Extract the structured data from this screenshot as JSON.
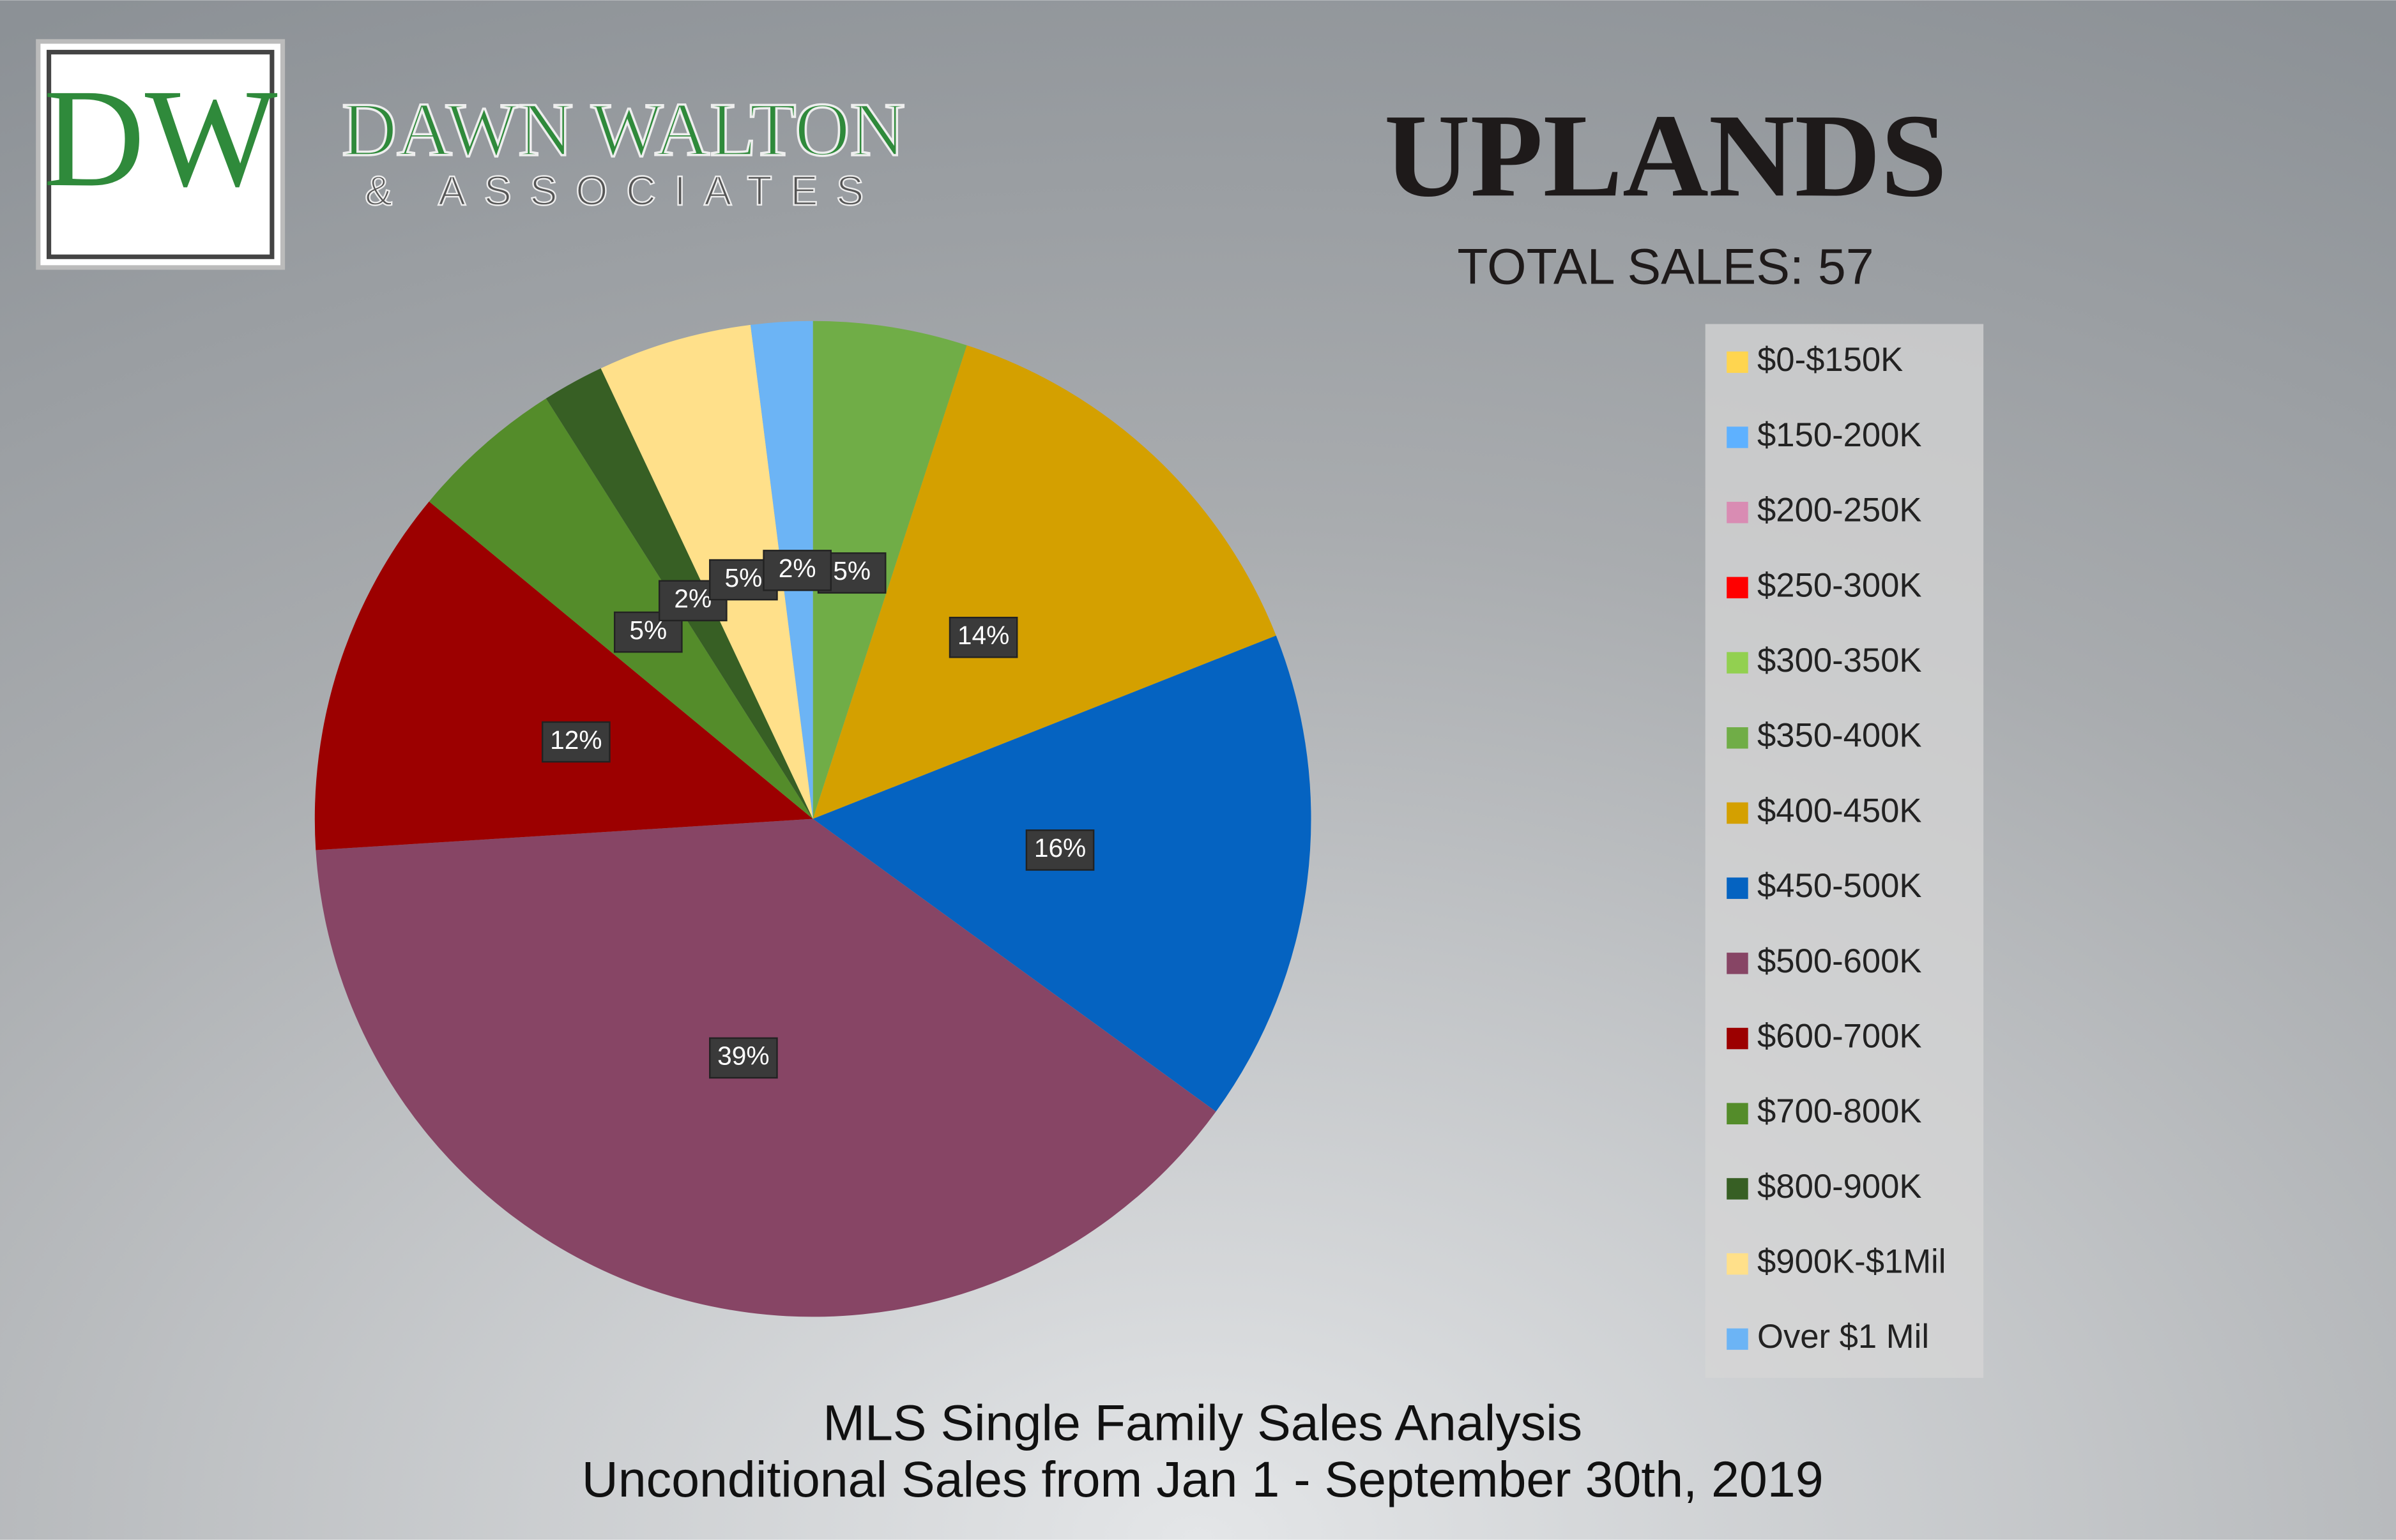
{
  "logo": {
    "initials": "DW",
    "name": "DAWN WALTON",
    "sub": "& ASSOCIATES"
  },
  "chart_data": {
    "type": "pie",
    "title": "UPLANDS",
    "subtitle": "TOTAL SALES: 57",
    "footer": [
      "MLS Single Family Sales Analysis",
      "Unconditional Sales from Jan 1 - September 30th, 2019"
    ],
    "categories": [
      "$0-$150K",
      "$150-200K",
      "$200-250K",
      "$250-300K",
      "$300-350K",
      "$350-400K",
      "$400-450K",
      "$450-500K",
      "$500-600K",
      "$600-700K",
      "$700-800K",
      "$800-900K",
      "$900K-$1Mil",
      "Over $1 Mil"
    ],
    "values": [
      0,
      0,
      0,
      0,
      0,
      5,
      14,
      16,
      39,
      12,
      5,
      2,
      5,
      2
    ],
    "value_labels": [
      null,
      null,
      null,
      null,
      null,
      "5%",
      "14%",
      "16%",
      "39%",
      "12%",
      "5%",
      "2%",
      "5%",
      "2%"
    ],
    "colors": [
      "#ffd54f",
      "#5eb1ff",
      "#d98cb3",
      "#ff0000",
      "#92d050",
      "#70ad47",
      "#d4a000",
      "#0563c1",
      "#874565",
      "#9c0000",
      "#548c2a",
      "#375f24",
      "#ffe08a",
      "#6cb4f5"
    ],
    "legend": "right"
  }
}
